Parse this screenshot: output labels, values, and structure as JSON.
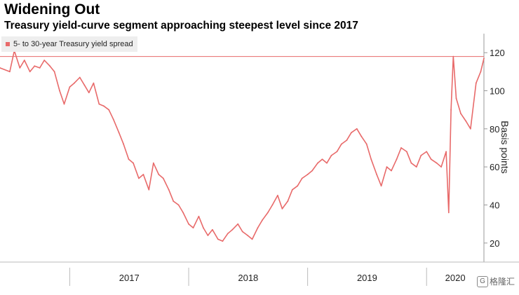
{
  "title": "Widening Out",
  "subtitle": "Treasury yield-curve segment approaching steepest level since 2017",
  "watermark": {
    "icon": "g-logo-icon",
    "text": "格隆汇"
  },
  "chart_data": {
    "type": "line",
    "title": "Widening Out",
    "subtitle": "Treasury yield-curve segment approaching steepest level since 2017",
    "ylabel": "Basis points",
    "xlabel": "",
    "ylim": [
      10,
      130
    ],
    "yticks": [
      20,
      40,
      60,
      80,
      100,
      120
    ],
    "xticks": [
      "2017",
      "2018",
      "2019",
      "2020"
    ],
    "xlim": [
      "2016-06-01",
      "2020-06-25"
    ],
    "reference_line": {
      "value": 118,
      "color": "#e86a6a"
    },
    "legend_position": "top-left",
    "series": [
      {
        "name": "5- to 30-year Treasury yield spread",
        "color": "#e86a6a",
        "points": [
          [
            "2016-06-01",
            112
          ],
          [
            "2016-07-01",
            110
          ],
          [
            "2016-07-15",
            121
          ],
          [
            "2016-08-01",
            112
          ],
          [
            "2016-08-15",
            116
          ],
          [
            "2016-09-01",
            110
          ],
          [
            "2016-09-15",
            113
          ],
          [
            "2016-10-01",
            112
          ],
          [
            "2016-10-15",
            116
          ],
          [
            "2016-11-01",
            113
          ],
          [
            "2016-11-15",
            110
          ],
          [
            "2016-12-01",
            100
          ],
          [
            "2016-12-15",
            93
          ],
          [
            "2017-01-01",
            102
          ],
          [
            "2017-01-15",
            104
          ],
          [
            "2017-02-01",
            107
          ],
          [
            "2017-02-15",
            103
          ],
          [
            "2017-03-01",
            99
          ],
          [
            "2017-03-15",
            104
          ],
          [
            "2017-04-01",
            93
          ],
          [
            "2017-04-15",
            92
          ],
          [
            "2017-05-01",
            90
          ],
          [
            "2017-05-15",
            85
          ],
          [
            "2017-06-01",
            78
          ],
          [
            "2017-06-15",
            72
          ],
          [
            "2017-07-01",
            64
          ],
          [
            "2017-07-15",
            62
          ],
          [
            "2017-08-01",
            54
          ],
          [
            "2017-08-15",
            56
          ],
          [
            "2017-09-01",
            48
          ],
          [
            "2017-09-15",
            62
          ],
          [
            "2017-10-01",
            56
          ],
          [
            "2017-10-15",
            54
          ],
          [
            "2017-11-01",
            48
          ],
          [
            "2017-11-15",
            42
          ],
          [
            "2017-12-01",
            40
          ],
          [
            "2017-12-15",
            36
          ],
          [
            "2018-01-01",
            30
          ],
          [
            "2018-01-15",
            28
          ],
          [
            "2018-02-01",
            34
          ],
          [
            "2018-02-15",
            28
          ],
          [
            "2018-03-01",
            24
          ],
          [
            "2018-03-15",
            27
          ],
          [
            "2018-04-01",
            22
          ],
          [
            "2018-04-15",
            21
          ],
          [
            "2018-05-01",
            25
          ],
          [
            "2018-05-15",
            27
          ],
          [
            "2018-06-01",
            30
          ],
          [
            "2018-06-15",
            26
          ],
          [
            "2018-07-01",
            24
          ],
          [
            "2018-07-15",
            22
          ],
          [
            "2018-08-01",
            28
          ],
          [
            "2018-08-15",
            32
          ],
          [
            "2018-09-01",
            36
          ],
          [
            "2018-09-15",
            40
          ],
          [
            "2018-10-01",
            45
          ],
          [
            "2018-10-15",
            38
          ],
          [
            "2018-11-01",
            42
          ],
          [
            "2018-11-15",
            48
          ],
          [
            "2018-12-01",
            50
          ],
          [
            "2018-12-15",
            54
          ],
          [
            "2019-01-01",
            56
          ],
          [
            "2019-01-15",
            58
          ],
          [
            "2019-02-01",
            62
          ],
          [
            "2019-02-15",
            64
          ],
          [
            "2019-03-01",
            62
          ],
          [
            "2019-03-15",
            66
          ],
          [
            "2019-04-01",
            68
          ],
          [
            "2019-04-15",
            72
          ],
          [
            "2019-05-01",
            74
          ],
          [
            "2019-05-15",
            78
          ],
          [
            "2019-06-01",
            80
          ],
          [
            "2019-06-15",
            76
          ],
          [
            "2019-07-01",
            72
          ],
          [
            "2019-07-15",
            64
          ],
          [
            "2019-08-01",
            56
          ],
          [
            "2019-08-15",
            50
          ],
          [
            "2019-09-01",
            60
          ],
          [
            "2019-09-15",
            58
          ],
          [
            "2019-10-01",
            64
          ],
          [
            "2019-10-15",
            70
          ],
          [
            "2019-11-01",
            68
          ],
          [
            "2019-11-15",
            62
          ],
          [
            "2019-12-01",
            60
          ],
          [
            "2019-12-15",
            66
          ],
          [
            "2020-01-01",
            68
          ],
          [
            "2020-01-15",
            64
          ],
          [
            "2020-02-01",
            62
          ],
          [
            "2020-02-15",
            60
          ],
          [
            "2020-03-01",
            68
          ],
          [
            "2020-03-09",
            36
          ],
          [
            "2020-03-16",
            90
          ],
          [
            "2020-03-23",
            118
          ],
          [
            "2020-04-01",
            96
          ],
          [
            "2020-04-15",
            88
          ],
          [
            "2020-05-01",
            84
          ],
          [
            "2020-05-15",
            80
          ],
          [
            "2020-06-01",
            104
          ],
          [
            "2020-06-15",
            110
          ],
          [
            "2020-06-25",
            117
          ]
        ]
      }
    ]
  }
}
